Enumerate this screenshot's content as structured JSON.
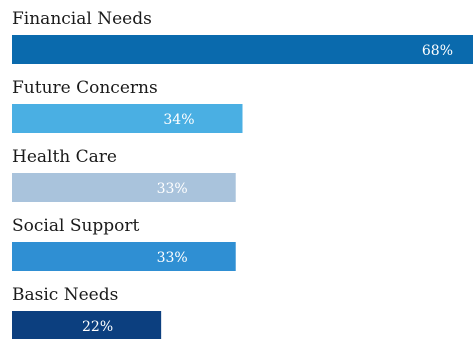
{
  "chart_data": {
    "type": "bar",
    "orientation": "horizontal",
    "categories": [
      "Financial Needs",
      "Future Concerns",
      "Health Care",
      "Social Support",
      "Basic Needs"
    ],
    "values": [
      68,
      34,
      33,
      33,
      22
    ],
    "value_labels": [
      "68%",
      "34%",
      "33%",
      "33%",
      "22%"
    ],
    "colors": [
      "#0a6aad",
      "#4aafe3",
      "#a9c3dc",
      "#2f8fd3",
      "#0c3f7f"
    ],
    "xlim": [
      0,
      68
    ],
    "grid": false,
    "legend": "none"
  }
}
